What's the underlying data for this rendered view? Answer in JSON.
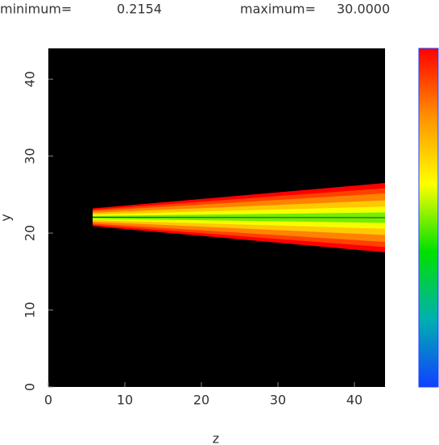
{
  "chart_data": {
    "type": "cone",
    "header": [
      "minimum=",
      {
        "value": 0.2154,
        "label": "0.2154"
      },
      "maximum=",
      {
        "value": 30,
        "label": "30.0000"
      }
    ],
    "x_label": "z",
    "y_label": "y",
    "xlim": [
      0,
      44
    ],
    "ylim": [
      0,
      44
    ],
    "xticks": [
      0,
      10,
      20,
      30,
      40
    ],
    "yticks": [
      0,
      10,
      20,
      30,
      40
    ],
    "background": "#000000",
    "cone": {
      "z": [
        5.8,
        44
      ],
      "upper": [
        23.2,
        26.5
      ],
      "lower": [
        20.9,
        17.5
      ]
    },
    "colorbar": {
      "colors": [
        "#1040ff",
        "#00b0b0",
        "#00e000",
        "#ffff00",
        "#ff9000",
        "#ff0000"
      ]
    }
  }
}
